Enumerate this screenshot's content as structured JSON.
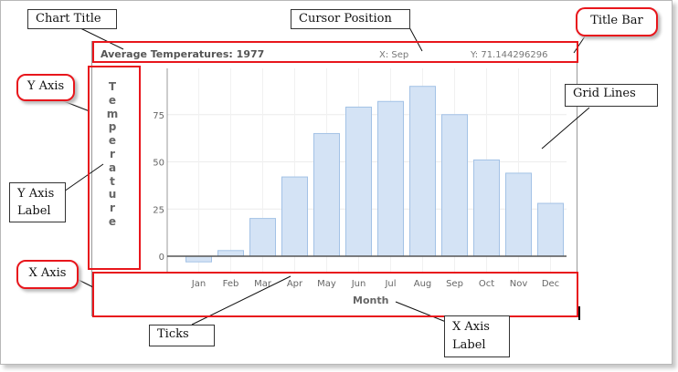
{
  "chart_data": {
    "type": "bar",
    "title": "Average Temperatures: 1977",
    "xlabel": "Month",
    "ylabel": "Temperature",
    "categories": [
      "Jan",
      "Feb",
      "Mar",
      "Apr",
      "May",
      "Jun",
      "Jul",
      "Aug",
      "Sep",
      "Oct",
      "Nov",
      "Dec"
    ],
    "values": [
      -3,
      3,
      20,
      42,
      65,
      79,
      82,
      90,
      75,
      51,
      44,
      28
    ],
    "yticks": [
      0,
      25,
      50,
      75
    ],
    "ylim": [
      -5,
      90
    ],
    "grid": true,
    "bar_color": "#d4e3f5",
    "bar_stroke": "#a3c2e6"
  },
  "cursor": {
    "x_text": "X: Sep",
    "y_text": "Y: 71.144296296"
  },
  "callouts": {
    "chart_title": "Chart Title",
    "cursor_position": "Cursor Position",
    "title_bar": "Title Bar",
    "y_axis": "Y Axis",
    "y_axis_label": "Y Axis Label",
    "grid_lines": "Grid Lines",
    "x_axis": "X Axis",
    "ticks": "Ticks",
    "x_axis_label": "X Axis Label"
  },
  "colors": {
    "highlight": "#e8161c"
  }
}
